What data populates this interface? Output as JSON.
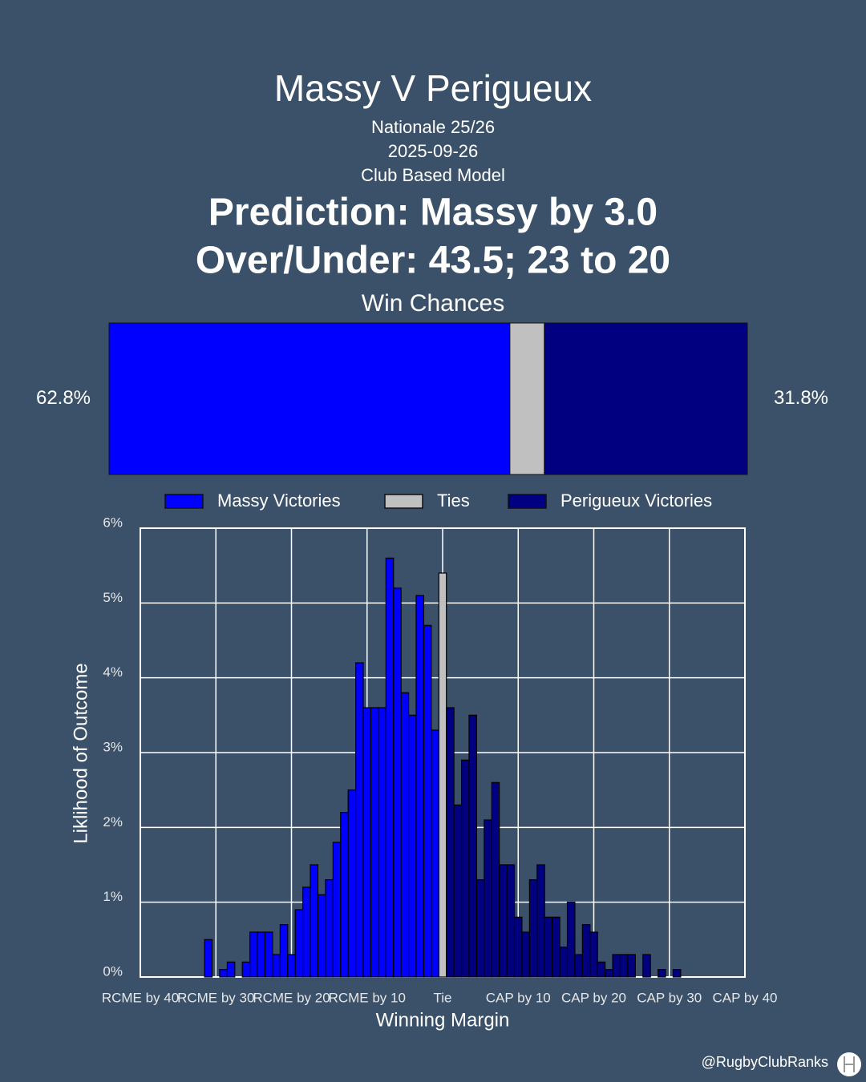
{
  "header": {
    "title": "Massy V Perigueux",
    "subtitle": [
      "Nationale 25/26",
      "2025-09-26",
      "Club Based Model"
    ],
    "headline": [
      "Prediction: Massy by 3.0",
      "Over/Under: 43.5; 23 to 20"
    ]
  },
  "chart_data": [
    {
      "type": "stacked-hbar",
      "title": "Win Chances",
      "xlim": [
        0,
        100
      ],
      "series": [
        {
          "name": "Massy Victories",
          "color": "#0000ff",
          "values": [
            62.8
          ],
          "value_labels": [
            "62.8%"
          ]
        },
        {
          "name": "Ties",
          "color": "#c0c0c0",
          "values": [
            5.4
          ]
        },
        {
          "name": "Perigueux Victories",
          "color": "#000080",
          "values": [
            31.8
          ],
          "value_labels": [
            "31.8%"
          ]
        }
      ]
    },
    {
      "type": "bar",
      "xlabel": "Winning Margin",
      "ylabel": "Liklihood of Outcome",
      "xlim": [
        -40,
        40
      ],
      "ylim": [
        0,
        6
      ],
      "xticks": [
        {
          "value": -40,
          "label": "RCME by 40"
        },
        {
          "value": -30,
          "label": "RCME by 30"
        },
        {
          "value": -20,
          "label": "RCME by 20"
        },
        {
          "value": -10,
          "label": "RCME by 10"
        },
        {
          "value": 0,
          "label": "Tie"
        },
        {
          "value": 10,
          "label": "CAP by 10"
        },
        {
          "value": 20,
          "label": "CAP by 20"
        },
        {
          "value": 30,
          "label": "CAP by 30"
        },
        {
          "value": 40,
          "label": "CAP by 40"
        }
      ],
      "yticks": [
        {
          "value": 0,
          "label": "0%"
        },
        {
          "value": 1,
          "label": "1%"
        },
        {
          "value": 2,
          "label": "2%"
        },
        {
          "value": 3,
          "label": "3%"
        },
        {
          "value": 4,
          "label": "4%"
        },
        {
          "value": 5,
          "label": "5%"
        },
        {
          "value": 6,
          "label": "6%"
        }
      ],
      "grid": true,
      "x": [
        -31,
        -30,
        -29,
        -28,
        -27,
        -26,
        -25,
        -24,
        -23,
        -22,
        -21,
        -20,
        -19,
        -18,
        -17,
        -16,
        -15,
        -14,
        -13,
        -12,
        -11,
        -10,
        -9,
        -8,
        -7,
        -6,
        -5,
        -4,
        -3,
        -2,
        -1,
        0,
        1,
        2,
        3,
        4,
        5,
        6,
        7,
        8,
        9,
        10,
        11,
        12,
        13,
        14,
        15,
        16,
        17,
        18,
        19,
        20,
        21,
        22,
        23,
        24,
        25,
        26,
        27,
        28,
        29,
        30,
        31
      ],
      "series": [
        {
          "color": "#0000ff",
          "values": [
            0.5,
            0,
            0.1,
            0.2,
            0,
            0.2,
            0.6,
            0.6,
            0.6,
            0.3,
            0.7,
            0.3,
            0.9,
            1.2,
            1.5,
            1.1,
            1.3,
            1.8,
            2.2,
            2.5,
            4.2,
            3.6,
            3.6,
            3.6,
            5.6,
            5.2,
            3.8,
            3.5,
            5.1,
            4.7,
            3.3,
            null,
            null,
            null,
            null,
            null,
            null,
            null,
            null,
            null,
            null,
            null,
            null,
            null,
            null,
            null,
            null,
            null,
            null,
            null,
            null,
            null,
            null,
            null,
            null,
            null,
            null,
            null,
            null,
            null,
            null,
            null,
            null
          ]
        },
        {
          "color": "#c0c0c0",
          "values": [
            null,
            null,
            null,
            null,
            null,
            null,
            null,
            null,
            null,
            null,
            null,
            null,
            null,
            null,
            null,
            null,
            null,
            null,
            null,
            null,
            null,
            null,
            null,
            null,
            null,
            null,
            null,
            null,
            null,
            null,
            null,
            5.4,
            null,
            null,
            null,
            null,
            null,
            null,
            null,
            null,
            null,
            null,
            null,
            null,
            null,
            null,
            null,
            null,
            null,
            null,
            null,
            null,
            null,
            null,
            null,
            null,
            null,
            null,
            null,
            null,
            null,
            null,
            null
          ]
        },
        {
          "color": "#000080",
          "values": [
            null,
            null,
            null,
            null,
            null,
            null,
            null,
            null,
            null,
            null,
            null,
            null,
            null,
            null,
            null,
            null,
            null,
            null,
            null,
            null,
            null,
            null,
            null,
            null,
            null,
            null,
            null,
            null,
            null,
            null,
            null,
            null,
            3.6,
            2.3,
            2.9,
            3.5,
            1.3,
            2.1,
            2.6,
            1.5,
            1.5,
            0.8,
            0.6,
            1.3,
            1.5,
            0.8,
            0.8,
            0.4,
            1.0,
            0.3,
            0.7,
            0.6,
            0.2,
            0.1,
            0.3,
            0.3,
            0.3,
            0,
            0.3,
            0,
            0.1,
            0,
            0.1
          ]
        }
      ]
    }
  ],
  "footer": "@RugbyClubRanks"
}
